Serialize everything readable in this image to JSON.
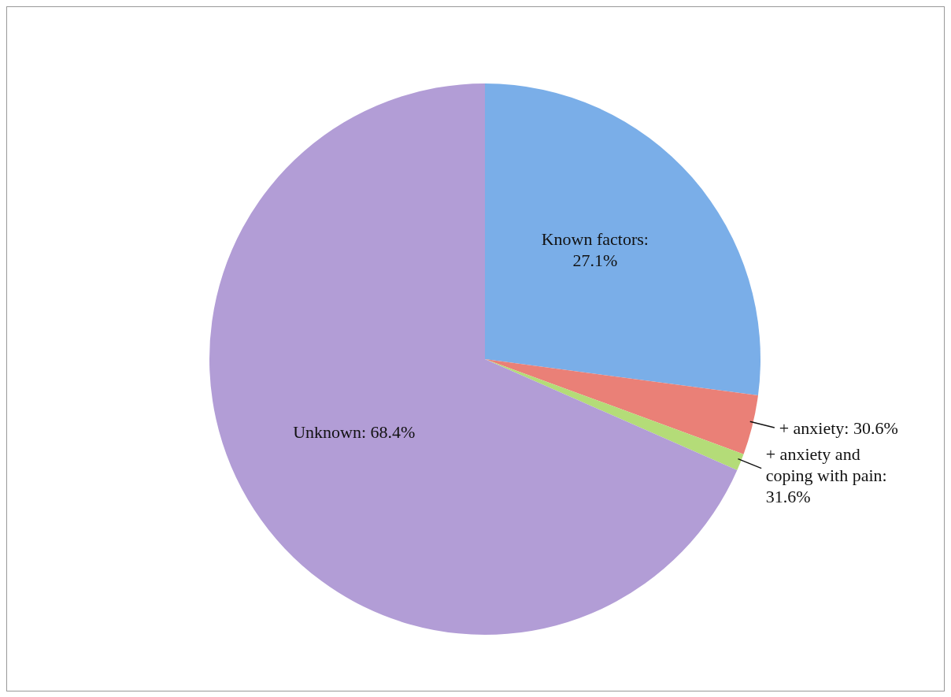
{
  "chart_data": {
    "type": "pie",
    "categories": [
      "Known factors: 27.1%",
      "+ anxiety: 30.6%",
      "+ anxiety and coping with pain: 31.6%",
      "Unknown: 68.4%"
    ],
    "values": [
      27.1,
      3.5,
      1.0,
      68.4
    ],
    "colors": [
      "#7aaee8",
      "#ea8077",
      "#b4dc78",
      "#b29dd6"
    ]
  }
}
